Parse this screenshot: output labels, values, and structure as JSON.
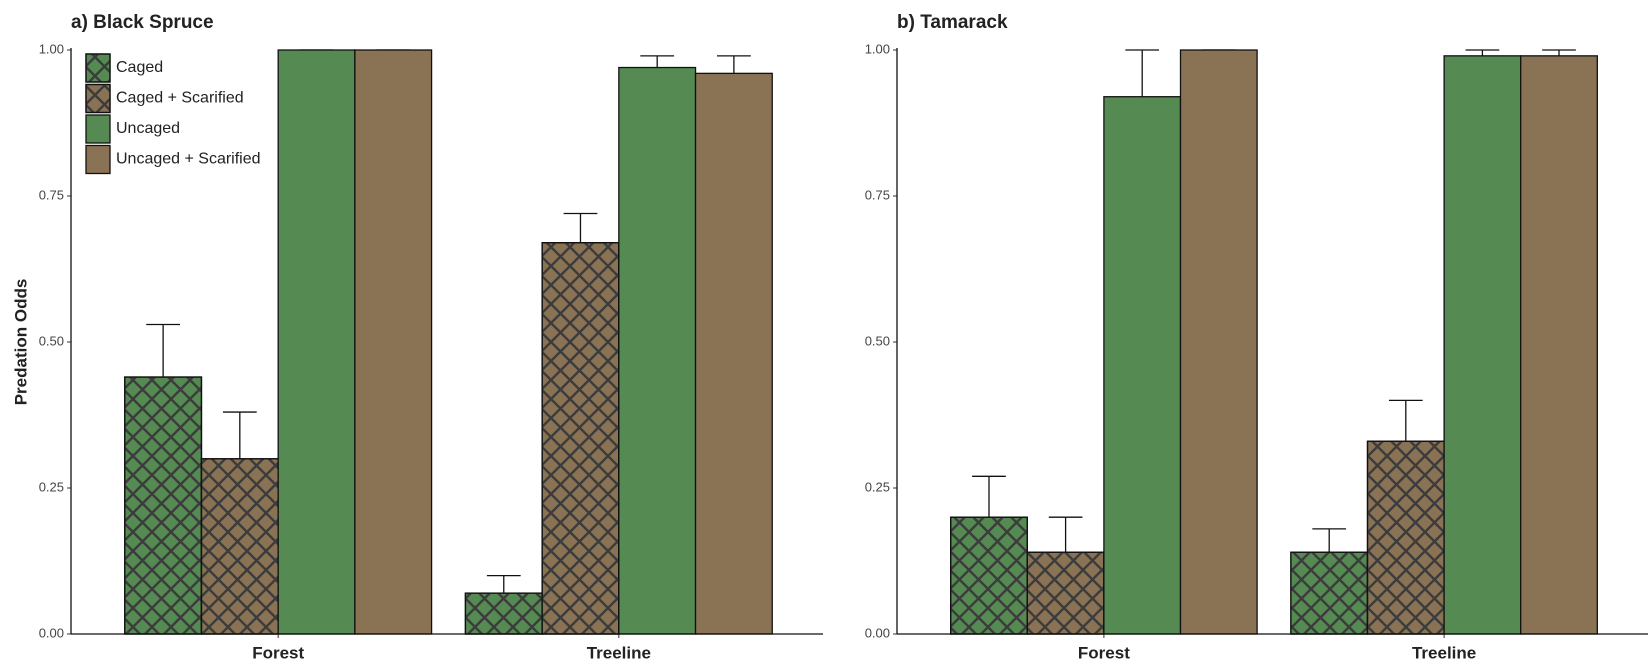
{
  "chart_data": [
    {
      "type": "bar",
      "title": "a) Black Spruce",
      "y_label": "Predation Odds",
      "categories": [
        "Forest",
        "Treeline"
      ],
      "ylim": [
        0,
        1
      ],
      "yticks": [
        {
          "value": 0,
          "label": "0.00"
        },
        {
          "value": 0.25,
          "label": "0.25"
        },
        {
          "value": 0.5,
          "label": "0.50"
        },
        {
          "value": 0.75,
          "label": "0.75"
        },
        {
          "value": 1,
          "label": "1.00"
        }
      ],
      "legend": "top-left",
      "series": [
        {
          "name": "Caged",
          "color": "#558b53",
          "pattern": "crosshatch",
          "values": [
            0.44,
            0.07
          ],
          "errors": [
            0.09,
            0.03
          ]
        },
        {
          "name": "Caged + Scarified",
          "color": "#8a7255",
          "pattern": "crosshatch",
          "values": [
            0.3,
            0.67
          ],
          "errors": [
            0.08,
            0.05
          ]
        },
        {
          "name": "Uncaged",
          "color": "#558b53",
          "pattern": "solid",
          "values": [
            1.0,
            0.97
          ],
          "errors": [
            0,
            0.02
          ]
        },
        {
          "name": "Uncaged + Scarified",
          "color": "#8a7255",
          "pattern": "solid",
          "values": [
            1.0,
            0.96
          ],
          "errors": [
            0,
            0.03
          ]
        }
      ]
    },
    {
      "type": "bar",
      "title": "b) Tamarack",
      "categories": [
        "Forest",
        "Treeline"
      ],
      "ylim": [
        0,
        1
      ],
      "yticks": [
        {
          "value": 0,
          "label": "0.00"
        },
        {
          "value": 0.25,
          "label": "0.25"
        },
        {
          "value": 0.5,
          "label": "0.50"
        },
        {
          "value": 0.75,
          "label": "0.75"
        },
        {
          "value": 1,
          "label": "1.00"
        }
      ],
      "series": [
        {
          "color": "#558b53",
          "pattern": "crosshatch",
          "values": [
            0.2,
            0.14
          ],
          "errors": [
            0.07,
            0.04
          ]
        },
        {
          "color": "#8a7255",
          "pattern": "crosshatch",
          "values": [
            0.14,
            0.33
          ],
          "errors": [
            0.06,
            0.07
          ]
        },
        {
          "color": "#558b53",
          "pattern": "solid",
          "values": [
            0.92,
            0.99
          ],
          "errors": [
            0.08,
            0.01
          ]
        },
        {
          "color": "#8a7255",
          "pattern": "solid",
          "values": [
            1.0,
            0.99
          ],
          "errors": [
            0,
            0.01
          ]
        }
      ]
    }
  ]
}
